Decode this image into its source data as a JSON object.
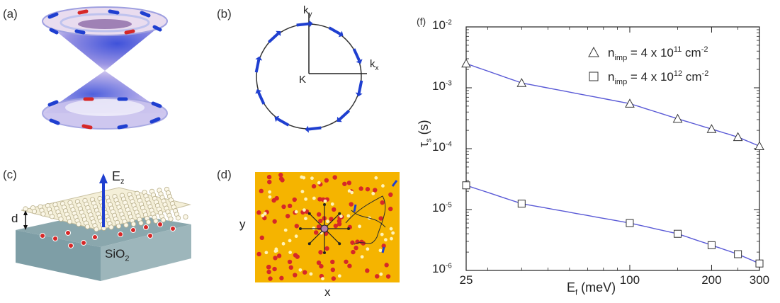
{
  "panels": {
    "a": {
      "label": "(a)"
    },
    "b": {
      "label": "(b)",
      "ky": "k",
      "ky_sub": "y",
      "kx": "k",
      "kx_sub": "x",
      "origin": "K"
    },
    "c": {
      "label": "(c)",
      "field": "E",
      "field_sub": "z",
      "distance": "d",
      "substrate": "SiO",
      "substrate_sub": "2"
    },
    "d": {
      "label": "(d)",
      "xaxis": "x",
      "yaxis": "y"
    },
    "f": {
      "label": "(f)"
    }
  },
  "colors": {
    "series_line": "#5a5ad6",
    "arrow": "#1f3fd0",
    "impurity": "#d62828",
    "map_bg": "#f5b400"
  },
  "chart_data": {
    "type": "line",
    "xlabel": "E",
    "xlabel_sub": "f",
    "xlabel_unit": "(meV)",
    "ylabel": "τ",
    "ylabel_sub": "s",
    "ylabel_unit": "(s)",
    "xscale": "log",
    "yscale": "log",
    "xlim": [
      25,
      300
    ],
    "ylim": [
      1e-06,
      0.01
    ],
    "xticks": [
      25,
      100,
      200,
      300
    ],
    "xtick_labels": [
      "25",
      "100",
      "200",
      "300"
    ],
    "yticks": [
      1e-06,
      1e-05,
      0.0001,
      0.001,
      0.01
    ],
    "ytick_labels": [
      {
        "base": "10",
        "exp": "-6"
      },
      {
        "base": "10",
        "exp": "-5"
      },
      {
        "base": "10",
        "exp": "-4"
      },
      {
        "base": "10",
        "exp": "-3"
      },
      {
        "base": "10",
        "exp": "-2"
      }
    ],
    "legend_position": "top-right",
    "series": [
      {
        "name": "n_imp = 4 x 10^11 cm^-2",
        "legend": {
          "n": "n",
          "sub": "imp",
          "eq": " = 4 x 10",
          "exp": "11",
          "unit": " cm",
          "unit_exp": "-2"
        },
        "marker": "triangle",
        "x": [
          25,
          40,
          100,
          150,
          200,
          250,
          300
        ],
        "y": [
          0.0025,
          0.0012,
          0.00055,
          0.00031,
          0.00021,
          0.000155,
          0.00011
        ]
      },
      {
        "name": "n_imp = 4 x 10^12 cm^-2",
        "legend": {
          "n": "n",
          "sub": "imp",
          "eq": " = 4 x 10",
          "exp": "12",
          "unit": " cm",
          "unit_exp": "-2"
        },
        "marker": "square",
        "x": [
          25,
          40,
          100,
          150,
          200,
          250,
          300
        ],
        "y": [
          2.5e-05,
          1.25e-05,
          6e-06,
          4e-06,
          2.6e-06,
          1.85e-06,
          1.3e-06
        ]
      }
    ]
  }
}
